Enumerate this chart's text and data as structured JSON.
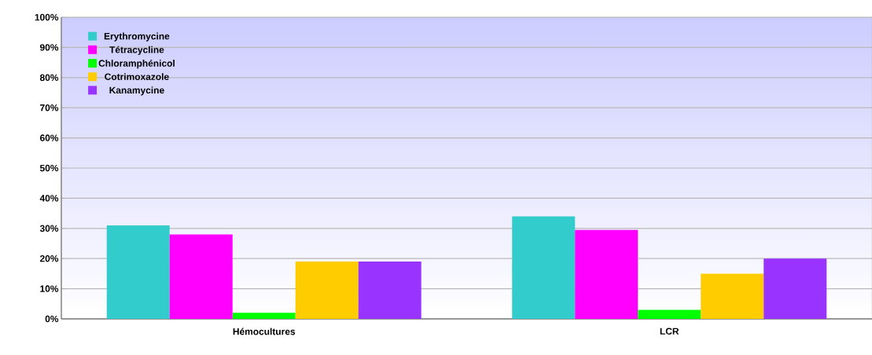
{
  "chart_data": {
    "type": "bar",
    "categories": [
      "Hémocultures",
      "LCR"
    ],
    "series": [
      {
        "name": "Erythromycine",
        "color": "#33cccc",
        "values": [
          31,
          34
        ]
      },
      {
        "name": "Tétracycline",
        "color": "#ff00ff",
        "values": [
          28,
          29.5
        ]
      },
      {
        "name": "Chloramphénicol",
        "color": "#00ff00",
        "values": [
          2,
          3
        ]
      },
      {
        "name": "Cotrimoxazole",
        "color": "#ffcc00",
        "values": [
          19,
          15
        ]
      },
      {
        "name": "Kanamycine",
        "color": "#9933ff",
        "values": [
          19,
          20
        ]
      }
    ],
    "ylim": [
      0,
      100
    ],
    "yticks": [
      {
        "value": 0,
        "label": "0%"
      },
      {
        "value": 10,
        "label": "10%"
      },
      {
        "value": 20,
        "label": "20%"
      },
      {
        "value": 30,
        "label": "30%"
      },
      {
        "value": 40,
        "label": "40%"
      },
      {
        "value": 50,
        "label": "50%"
      },
      {
        "value": 60,
        "label": "60%"
      },
      {
        "value": 70,
        "label": "70%"
      },
      {
        "value": 80,
        "label": "80%"
      },
      {
        "value": 90,
        "label": "90%"
      },
      {
        "value": 100,
        "label": "100%"
      }
    ],
    "grid": "y",
    "legend": "top left"
  }
}
